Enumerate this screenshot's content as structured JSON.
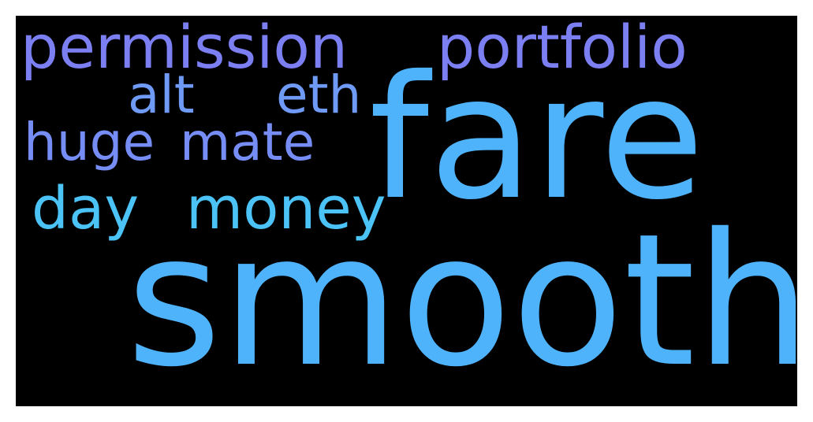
{
  "word_cloud": {
    "background": "#000000",
    "words": [
      {
        "id": "permission",
        "text": "permission",
        "color": "#7b7ff2"
      },
      {
        "id": "portfolio",
        "text": "portfolio",
        "color": "#7b7ff2"
      },
      {
        "id": "alt",
        "text": "alt",
        "color": "#6f9bf7"
      },
      {
        "id": "eth",
        "text": "eth",
        "color": "#6f9bf7"
      },
      {
        "id": "huge",
        "text": "huge",
        "color": "#758df4"
      },
      {
        "id": "mate",
        "text": "mate",
        "color": "#758df4"
      },
      {
        "id": "day",
        "text": "day",
        "color": "#4cc3f7"
      },
      {
        "id": "money",
        "text": "money",
        "color": "#4cc3f7"
      },
      {
        "id": "fare",
        "text": "fare",
        "color": "#4fb3fb"
      },
      {
        "id": "smooth",
        "text": "smooth",
        "color": "#4fb3fb"
      }
    ]
  }
}
